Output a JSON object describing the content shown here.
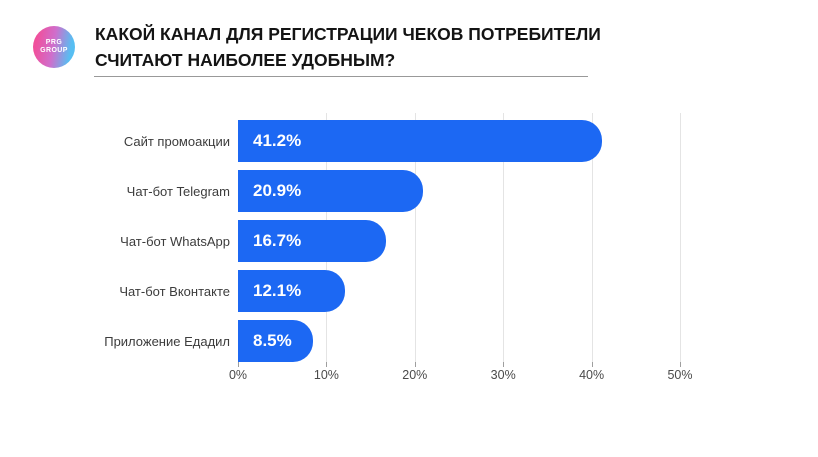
{
  "logo": {
    "line1": "PRG",
    "line2": "GROUP",
    "gradient_start": "#f0509c",
    "gradient_mid": "#cf6ecc",
    "gradient_end": "#57bef2"
  },
  "header": {
    "title_line1": "КАКОЙ КАНАЛ ДЛЯ РЕГИСТРАЦИИ ЧЕКОВ ПОТРЕБИТЕЛИ",
    "title_line2": "СЧИТАЮТ НАИБОЛЕЕ УДОБНЫМ?"
  },
  "chart_data": {
    "type": "bar",
    "orientation": "horizontal",
    "title": "КАКОЙ КАНАЛ ДЛЯ РЕГИСТРАЦИИ ЧЕКОВ ПОТРЕБИТЕЛИ СЧИТАЮТ НАИБОЛЕЕ УДОБНЫМ?",
    "categories": [
      "Сайт промоакции",
      "Чат-бот Telegram",
      "Чат-бот WhatsApp",
      "Чат-бот Вконтакте",
      "Приложение Едадил"
    ],
    "values": [
      41.2,
      20.9,
      16.7,
      12.1,
      8.5
    ],
    "value_labels": [
      "41.2%",
      "20.9%",
      "16.7%",
      "12.1%",
      "8.5%"
    ],
    "x_tick_values": [
      0,
      10,
      20,
      30,
      40,
      50
    ],
    "x_tick_labels": [
      "0%",
      "10%",
      "20%",
      "30%",
      "40%",
      "50%"
    ],
    "xlim": [
      0,
      50
    ],
    "grid": true,
    "legend": false,
    "bar_color": "#1c68f3",
    "grid_color": "#e4e4e4",
    "tick_color": "#9e9e9e",
    "value_label_color": "#ffffff",
    "category_label_color": "#3c3c3c"
  }
}
